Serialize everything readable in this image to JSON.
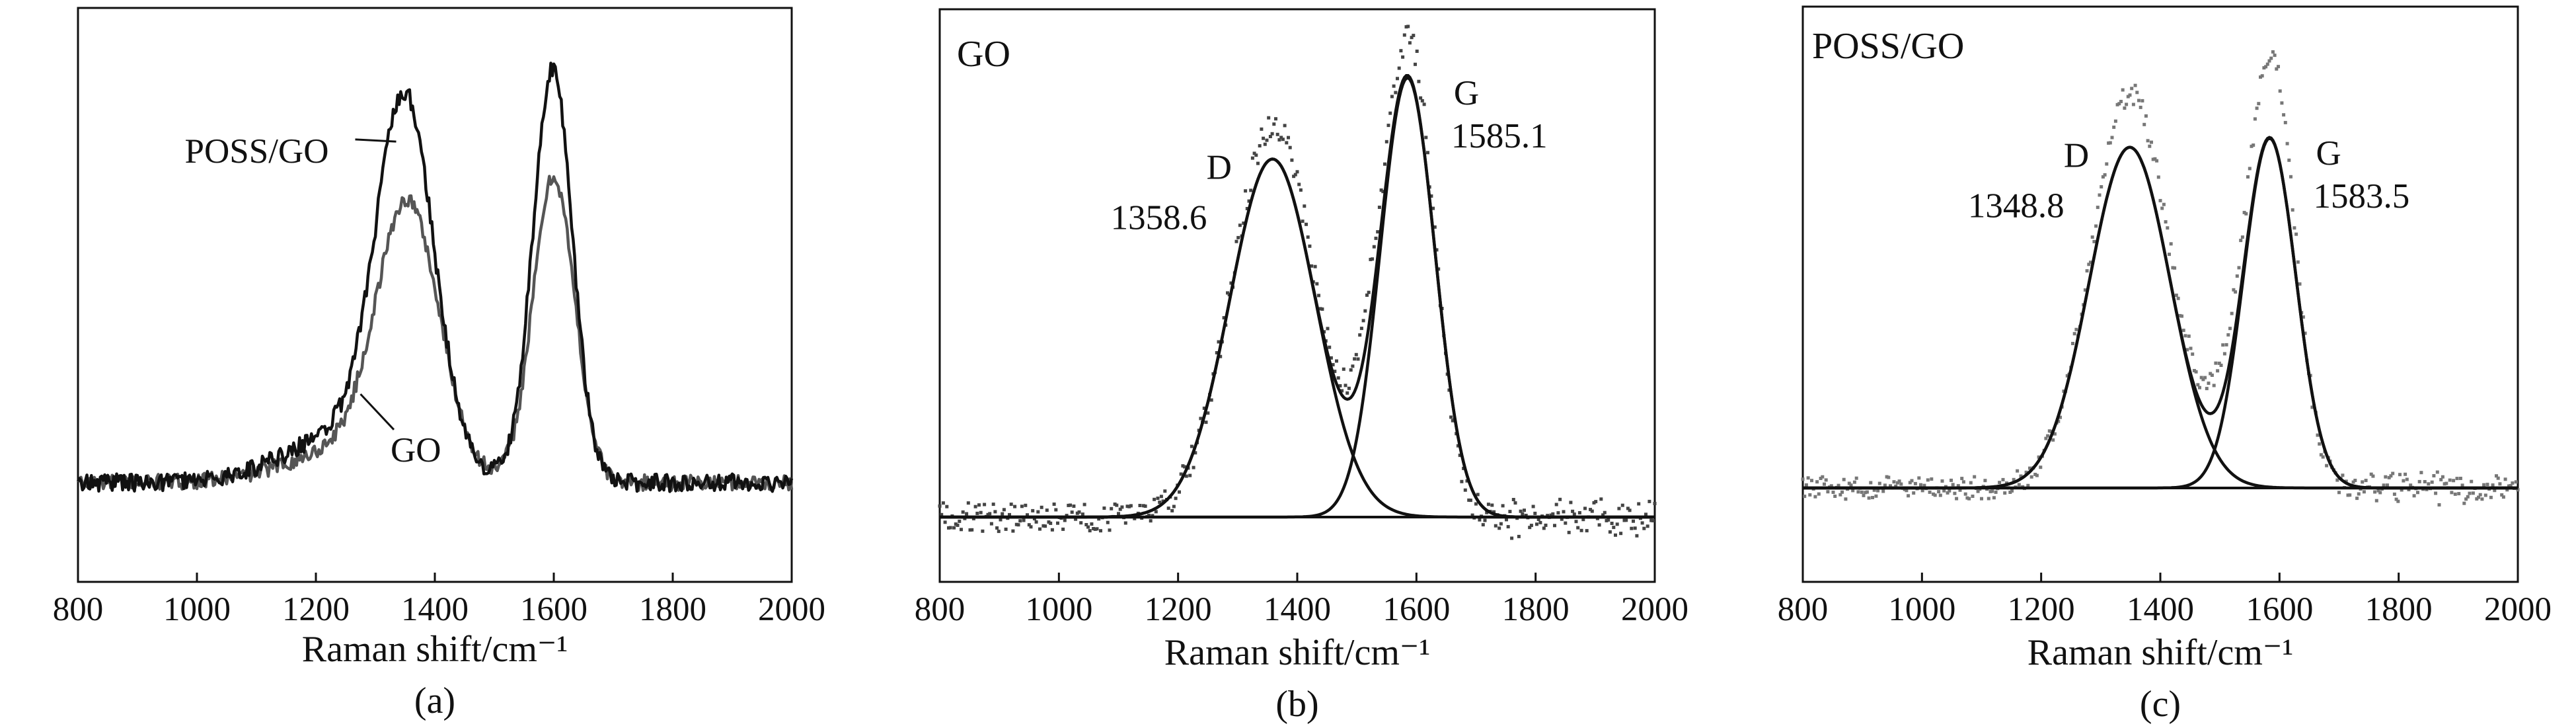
{
  "chart_data": [
    {
      "type": "line",
      "panel_label": "(a)",
      "xlabel": "Raman shift/cm⁻¹",
      "xlim": [
        800,
        2000
      ],
      "xticks": [
        "800",
        "1000",
        "1200",
        "1400",
        "1600",
        "1800",
        "2000"
      ],
      "ylim": [
        0,
        1.2
      ],
      "yticks_shown": false,
      "series": [
        {
          "name": "POSS/GO",
          "color": "#111111",
          "style": "line",
          "peaks": [
            {
              "center": 1350,
              "height": 0.79,
              "width": 48
            },
            {
              "center": 1598,
              "height": 0.93,
              "width": 33
            },
            {
              "center": 1270,
              "height": 0.12,
              "width": 110
            }
          ],
          "baseline": 0.2,
          "noise": 0.02
        },
        {
          "name": "GO",
          "color": "#555555",
          "style": "line",
          "peaks": [
            {
              "center": 1355,
              "height": 0.58,
              "width": 52
            },
            {
              "center": 1600,
              "height": 0.69,
              "width": 35
            },
            {
              "center": 1270,
              "height": 0.08,
              "width": 110
            }
          ],
          "baseline": 0.2,
          "noise": 0.018
        }
      ],
      "annotations": [
        {
          "text": "POSS/GO",
          "label_x": 1135,
          "label_y": 0.93,
          "tip_x": 1335,
          "tip_y": 0.97
        },
        {
          "text": "GO",
          "label_x": 1320,
          "label_y": 0.26,
          "tip_x": 1275,
          "tip_y": 0.4
        }
      ]
    },
    {
      "type": "line",
      "panel_label": "(b)",
      "inset_title": "GO",
      "xlabel": "Raman shift/cm⁻¹",
      "xlim": [
        800,
        2000
      ],
      "xticks": [
        "800",
        "1000",
        "1200",
        "1400",
        "1600",
        "1800",
        "2000"
      ],
      "ylim": [
        0,
        1.2
      ],
      "yticks_shown": false,
      "baseline": 0.0,
      "measured": {
        "style": "dots",
        "color": "#444444",
        "peaks": [
          {
            "center": 1360,
            "height": 0.82,
            "width": 70
          },
          {
            "center": 1590,
            "height": 0.98,
            "width": 40
          },
          {
            "center": 1525,
            "height": 0.22,
            "width": 30
          }
        ],
        "noise": 0.03
      },
      "fits": [
        {
          "label": "D",
          "center": 1358.6,
          "height": 0.75,
          "width": 72
        },
        {
          "label": "G",
          "center": 1585.1,
          "height": 0.92,
          "width": 46
        }
      ],
      "peak_labels": [
        {
          "letter": "D",
          "value": "1358.6"
        },
        {
          "letter": "G",
          "value": "1585.1"
        }
      ]
    },
    {
      "type": "line",
      "panel_label": "(c)",
      "inset_title": "POSS/GO",
      "xlabel": "Raman shift/cm⁻¹",
      "xlim": [
        800,
        2000
      ],
      "xticks": [
        "800",
        "1000",
        "1200",
        "1400",
        "1600",
        "1800",
        "2000"
      ],
      "ylim": [
        0,
        1.2
      ],
      "yticks_shown": false,
      "baseline": 0.0,
      "measured": {
        "style": "dots",
        "color": "#777777",
        "peaks": [
          {
            "center": 1350,
            "height": 0.88,
            "width": 66
          },
          {
            "center": 1588,
            "height": 0.94,
            "width": 38
          },
          {
            "center": 1520,
            "height": 0.18,
            "width": 35
          }
        ],
        "noise": 0.025
      },
      "fits": [
        {
          "label": "D",
          "center": 1348.8,
          "height": 0.76,
          "width": 68
        },
        {
          "label": "G",
          "center": 1583.5,
          "height": 0.78,
          "width": 44
        }
      ],
      "peak_labels": [
        {
          "letter": "D",
          "value": "1348.8"
        },
        {
          "letter": "G",
          "value": "1583.5"
        }
      ]
    }
  ]
}
